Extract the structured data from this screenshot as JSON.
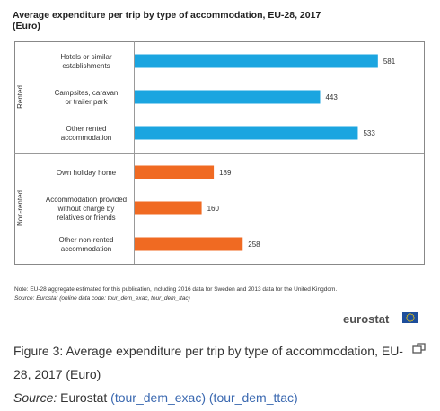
{
  "chart_data": {
    "type": "bar",
    "orientation": "horizontal",
    "title": "Average expenditure per trip by type of accommodation, EU-28, 2017",
    "subtitle": "(Euro)",
    "groups": [
      {
        "name": "Rented",
        "categories": [
          [
            "Hotels or similar",
            "establishments"
          ],
          [
            "Campsites, caravan",
            "or trailer park"
          ],
          [
            "Other rented",
            "accommodation"
          ]
        ],
        "values": [
          581,
          443,
          533
        ],
        "value_labels": [
          "581",
          "443",
          "533"
        ],
        "color": "#1ba5e0"
      },
      {
        "name": "Non-rented",
        "categories": [
          [
            "Own holiday home"
          ],
          [
            "Accommodation provided",
            "without charge by",
            "relatives or friends"
          ],
          [
            "Other non-rented",
            "accommodation"
          ]
        ],
        "values": [
          189,
          160,
          258
        ],
        "value_labels": [
          "189",
          "160",
          "258"
        ],
        "color": "#f06a22"
      }
    ],
    "xlim": [
      0,
      620
    ],
    "grid": false,
    "legend": "none",
    "note": "Note: EU-28 aggregate estimated for this publication, including 2016 data for Sweden and 2013 data for the United Kingdom.",
    "source": "Source: Eurostat (online data code: tour_dem_exac, tour_dem_ttac)",
    "brand": "eurostat"
  },
  "caption": {
    "text": "Figure 3: Average expenditure per trip by type of accommodation, EU-28, 2017 (Euro)",
    "source_label": "Source:",
    "source_org": "Eurostat",
    "links": [
      "(tour_dem_exac)",
      "(tour_dem_ttac)"
    ]
  },
  "colors": {
    "rented": "#1ba5e0",
    "non_rented": "#f06a22",
    "panel_border": "#888888",
    "link": "#3a68b0"
  },
  "icons": {
    "expand": "expand-icon",
    "flag": "eu-flag-icon"
  }
}
